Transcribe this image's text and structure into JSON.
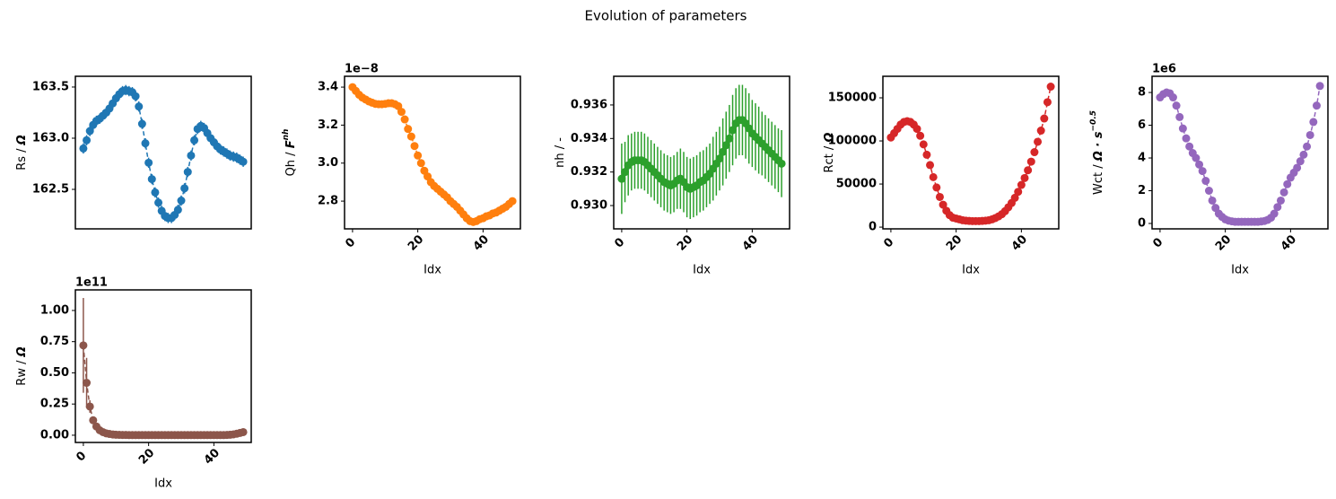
{
  "title": "Evolution of parameters",
  "chart_data": [
    {
      "type": "line",
      "color": "#1f77b4",
      "ylabel": "Rs / ",
      "ylabel_unit": "Ω",
      "x": [
        0,
        1,
        2,
        3,
        4,
        5,
        6,
        7,
        8,
        9,
        10,
        11,
        12,
        13,
        14,
        15,
        16,
        17,
        18,
        19,
        20,
        21,
        22,
        23,
        24,
        25,
        26,
        27,
        28,
        29,
        30,
        31,
        32,
        33,
        34,
        35,
        36,
        37,
        38,
        39,
        40,
        41,
        42,
        43,
        44,
        45,
        46,
        47,
        48,
        49
      ],
      "values": [
        162.9,
        162.98,
        163.07,
        163.13,
        163.17,
        163.19,
        163.22,
        163.25,
        163.29,
        163.34,
        163.39,
        163.43,
        163.46,
        163.47,
        163.46,
        163.45,
        163.41,
        163.31,
        163.14,
        162.95,
        162.76,
        162.6,
        162.47,
        162.37,
        162.29,
        162.24,
        162.22,
        162.22,
        162.25,
        162.3,
        162.39,
        162.51,
        162.67,
        162.83,
        162.98,
        163.09,
        163.12,
        163.1,
        163.05,
        163.0,
        162.96,
        162.92,
        162.89,
        162.87,
        162.85,
        162.83,
        162.82,
        162.81,
        162.79,
        162.77
      ],
      "errors": [
        0.05,
        0.05,
        0.05,
        0.05,
        0.05,
        0.05,
        0.05,
        0.05,
        0.05,
        0.05,
        0.05,
        0.05,
        0.05,
        0.05,
        0.05,
        0.05,
        0.05,
        0.05,
        0.05,
        0.05,
        0.05,
        0.05,
        0.05,
        0.05,
        0.05,
        0.05,
        0.05,
        0.05,
        0.05,
        0.05,
        0.05,
        0.05,
        0.05,
        0.05,
        0.05,
        0.05,
        0.05,
        0.05,
        0.05,
        0.05,
        0.05,
        0.05,
        0.05,
        0.05,
        0.05,
        0.05,
        0.05,
        0.05,
        0.05,
        0.05
      ],
      "xlim": [
        -2.45,
        51.45
      ],
      "ylim": [
        162.114,
        163.605
      ],
      "yticks": [
        162.5,
        {
          "value": 163.0,
          "label": "163.0"
        },
        163.5
      ]
    },
    {
      "type": "line",
      "color": "#ff7f0e",
      "ylabel": "Qh / ",
      "ylabel_unit": "F",
      "ylabel_sup": "nh",
      "xlabel": "Idx",
      "offset_label": "1e−8",
      "x": [
        0,
        1,
        2,
        3,
        4,
        5,
        6,
        7,
        8,
        9,
        10,
        11,
        12,
        13,
        14,
        15,
        16,
        17,
        18,
        19,
        20,
        21,
        22,
        23,
        24,
        25,
        26,
        27,
        28,
        29,
        30,
        31,
        32,
        33,
        34,
        35,
        36,
        37,
        38,
        39,
        40,
        41,
        42,
        43,
        44,
        45,
        46,
        47,
        48,
        49
      ],
      "values": [
        3.4,
        3.38,
        3.36,
        3.345,
        3.335,
        3.325,
        3.318,
        3.312,
        3.31,
        3.31,
        3.312,
        3.315,
        3.315,
        3.31,
        3.3,
        3.27,
        3.23,
        3.18,
        3.14,
        3.09,
        3.04,
        3.0,
        2.96,
        2.93,
        2.9,
        2.88,
        2.865,
        2.85,
        2.835,
        2.82,
        2.8,
        2.785,
        2.77,
        2.75,
        2.73,
        2.71,
        2.695,
        2.69,
        2.695,
        2.705,
        2.71,
        2.72,
        2.725,
        2.735,
        2.74,
        2.75,
        2.76,
        2.77,
        2.785,
        2.8
      ],
      "errors": [
        0.005,
        0.005,
        0.005,
        0.005,
        0.005,
        0.005,
        0.005,
        0.005,
        0.005,
        0.005,
        0.005,
        0.005,
        0.005,
        0.005,
        0.005,
        0.005,
        0.005,
        0.005,
        0.005,
        0.005,
        0.005,
        0.005,
        0.005,
        0.005,
        0.005,
        0.005,
        0.005,
        0.005,
        0.005,
        0.005,
        0.005,
        0.005,
        0.005,
        0.005,
        0.005,
        0.005,
        0.005,
        0.005,
        0.005,
        0.005,
        0.005,
        0.005,
        0.005,
        0.005,
        0.005,
        0.005,
        0.005,
        0.005,
        0.005,
        0.005
      ],
      "xlim": [
        -2.45,
        51.45
      ],
      "ylim": [
        2.654,
        3.457
      ],
      "xticks": [
        0,
        20,
        40
      ],
      "yticks": [
        2.8,
        {
          "value": 3.0,
          "label": "3.0"
        },
        3.2,
        3.4
      ]
    },
    {
      "type": "line",
      "color": "#2ca02c",
      "ylabel": "nh / -",
      "xlabel": "Idx",
      "x": [
        0,
        1,
        2,
        3,
        4,
        5,
        6,
        7,
        8,
        9,
        10,
        11,
        12,
        13,
        14,
        15,
        16,
        17,
        18,
        19,
        20,
        21,
        22,
        23,
        24,
        25,
        26,
        27,
        28,
        29,
        30,
        31,
        32,
        33,
        34,
        35,
        36,
        37,
        38,
        39,
        40,
        41,
        42,
        43,
        44,
        45,
        46,
        47,
        48,
        49
      ],
      "values": [
        0.9316,
        0.932,
        0.9324,
        0.9326,
        0.9327,
        0.9327,
        0.9327,
        0.9326,
        0.9324,
        0.9322,
        0.932,
        0.9318,
        0.9316,
        0.9314,
        0.9313,
        0.9312,
        0.9313,
        0.9315,
        0.9316,
        0.9314,
        0.9311,
        0.931,
        0.9311,
        0.9312,
        0.9314,
        0.9315,
        0.9317,
        0.9319,
        0.9322,
        0.9325,
        0.9328,
        0.9332,
        0.9336,
        0.934,
        0.9345,
        0.9349,
        0.9351,
        0.9351,
        0.9349,
        0.9346,
        0.9343,
        0.9341,
        0.9339,
        0.9337,
        0.9335,
        0.9333,
        0.9331,
        0.9329,
        0.9327,
        0.9325
      ],
      "errors": [
        0.0021,
        0.0018,
        0.0018,
        0.0017,
        0.0017,
        0.0017,
        0.0017,
        0.0017,
        0.0017,
        0.0017,
        0.0017,
        0.0017,
        0.0017,
        0.0017,
        0.0017,
        0.0017,
        0.0017,
        0.0017,
        0.0018,
        0.0018,
        0.0018,
        0.0018,
        0.0018,
        0.0018,
        0.0018,
        0.0018,
        0.0018,
        0.0018,
        0.0019,
        0.0019,
        0.0019,
        0.002,
        0.002,
        0.002,
        0.0021,
        0.0021,
        0.0021,
        0.0021,
        0.0021,
        0.0021,
        0.002,
        0.002,
        0.002,
        0.0019,
        0.0019,
        0.0019,
        0.0019,
        0.0019,
        0.0019,
        0.002
      ],
      "xlim": [
        -2.45,
        51.45
      ],
      "ylim": [
        0.92861,
        0.93771
      ],
      "xticks": [
        0,
        20,
        40
      ],
      "yticks": [
        {
          "value": 0.93,
          "label": "0.930"
        },
        0.932,
        0.934,
        0.936
      ]
    },
    {
      "type": "line",
      "color": "#d62728",
      "ylabel": "Rct / ",
      "ylabel_unit": "Ω",
      "xlabel": "Idx",
      "x": [
        0,
        1,
        2,
        3,
        4,
        5,
        6,
        7,
        8,
        9,
        10,
        11,
        12,
        13,
        14,
        15,
        16,
        17,
        18,
        19,
        20,
        21,
        22,
        23,
        24,
        25,
        26,
        27,
        28,
        29,
        30,
        31,
        32,
        33,
        34,
        35,
        36,
        37,
        38,
        39,
        40,
        41,
        42,
        43,
        44,
        45,
        46,
        47,
        48,
        49
      ],
      "values": [
        104000,
        109000,
        114000,
        119000,
        122000,
        123000,
        122000,
        119000,
        114000,
        106000,
        96000,
        84000,
        72000,
        58000,
        46000,
        35000,
        26000,
        19000,
        14000,
        11000,
        10000,
        9000,
        8000,
        7500,
        7200,
        7000,
        7000,
        7000,
        7200,
        7500,
        8000,
        9000,
        10500,
        12500,
        15000,
        18500,
        23000,
        28000,
        34000,
        41000,
        49000,
        57000,
        66000,
        76000,
        87000,
        99000,
        112000,
        126000,
        145000,
        163000
      ],
      "xlim": [
        -2.45,
        51.45
      ],
      "ylim": [
        -2000,
        175000
      ],
      "xticks": [
        0,
        20,
        40
      ],
      "yticks": [
        0,
        50000,
        100000,
        150000
      ]
    },
    {
      "type": "line",
      "color": "#9467bd",
      "ylabel": "Wct / ",
      "ylabel_unit": "Ω · s",
      "ylabel_sup": "−0.5",
      "xlabel": "Idx",
      "offset_label": "1e6",
      "x": [
        0,
        1,
        2,
        3,
        4,
        5,
        6,
        7,
        8,
        9,
        10,
        11,
        12,
        13,
        14,
        15,
        16,
        17,
        18,
        19,
        20,
        21,
        22,
        23,
        24,
        25,
        26,
        27,
        28,
        29,
        30,
        31,
        32,
        33,
        34,
        35,
        36,
        37,
        38,
        39,
        40,
        41,
        42,
        43,
        44,
        45,
        46,
        47,
        48,
        49
      ],
      "values": [
        7.7,
        7.9,
        8.0,
        7.95,
        7.7,
        7.2,
        6.5,
        5.8,
        5.2,
        4.7,
        4.3,
        4.0,
        3.6,
        3.2,
        2.6,
        2.0,
        1.4,
        0.95,
        0.6,
        0.4,
        0.25,
        0.17,
        0.13,
        0.1,
        0.1,
        0.1,
        0.1,
        0.1,
        0.1,
        0.1,
        0.1,
        0.12,
        0.15,
        0.22,
        0.35,
        0.6,
        1.0,
        1.4,
        1.9,
        2.4,
        2.8,
        3.1,
        3.4,
        3.8,
        4.2,
        4.7,
        5.4,
        6.2,
        7.2,
        8.4
      ],
      "xlim": [
        -2.45,
        51.45
      ],
      "ylim": [
        -0.33,
        8.99
      ],
      "xticks": [
        0,
        20,
        40
      ],
      "yticks": [
        0,
        2,
        4,
        6,
        8
      ]
    },
    {
      "type": "line",
      "color": "#8c564b",
      "ylabel": "Rw / ",
      "ylabel_unit": "Ω",
      "xlabel": "Idx",
      "offset_label": "1e11",
      "x": [
        0,
        1,
        2,
        3,
        4,
        5,
        6,
        7,
        8,
        9,
        10,
        11,
        12,
        13,
        14,
        15,
        16,
        17,
        18,
        19,
        20,
        21,
        22,
        23,
        24,
        25,
        26,
        27,
        28,
        29,
        30,
        31,
        32,
        33,
        34,
        35,
        36,
        37,
        38,
        39,
        40,
        41,
        42,
        43,
        44,
        45,
        46,
        47,
        48,
        49
      ],
      "values": [
        0.72,
        0.42,
        0.23,
        0.12,
        0.07,
        0.04,
        0.025,
        0.015,
        0.01,
        0.006,
        0.004,
        0.003,
        0.002,
        0.002,
        0.001,
        0.001,
        0.001,
        0.001,
        0.001,
        0.001,
        0.001,
        0.001,
        0.001,
        0.001,
        0.001,
        0.001,
        0.001,
        0.001,
        0.001,
        0.001,
        0.001,
        0.001,
        0.001,
        0.001,
        0.001,
        0.001,
        0.001,
        0.001,
        0.001,
        0.001,
        0.001,
        0.001,
        0.001,
        0.001,
        0.002,
        0.004,
        0.007,
        0.012,
        0.018,
        0.025
      ],
      "errors": [
        0.38,
        0.2,
        0.05,
        0.02,
        0.01,
        0.005,
        0.003,
        0.002,
        0.002,
        0.002,
        0.002,
        0.002,
        0.002,
        0.002,
        0.002,
        0.002,
        0.002,
        0.002,
        0.002,
        0.002,
        0.002,
        0.002,
        0.002,
        0.002,
        0.002,
        0.002,
        0.002,
        0.002,
        0.002,
        0.002,
        0.002,
        0.002,
        0.002,
        0.002,
        0.002,
        0.002,
        0.002,
        0.002,
        0.002,
        0.002,
        0.002,
        0.002,
        0.002,
        0.002,
        0.002,
        0.002,
        0.002,
        0.002,
        0.002,
        0.002
      ],
      "xlim": [
        -2.45,
        51.45
      ],
      "ylim": [
        -0.058,
        1.165
      ],
      "xticks": [
        0,
        20,
        40
      ],
      "yticks": [
        {
          "value": 0,
          "label": "0.00"
        },
        {
          "value": 0.25,
          "label": "0.25"
        },
        {
          "value": 0.5,
          "label": "0.50"
        },
        {
          "value": 0.75,
          "label": "0.75"
        },
        {
          "value": 1,
          "label": "1.00"
        }
      ]
    }
  ]
}
